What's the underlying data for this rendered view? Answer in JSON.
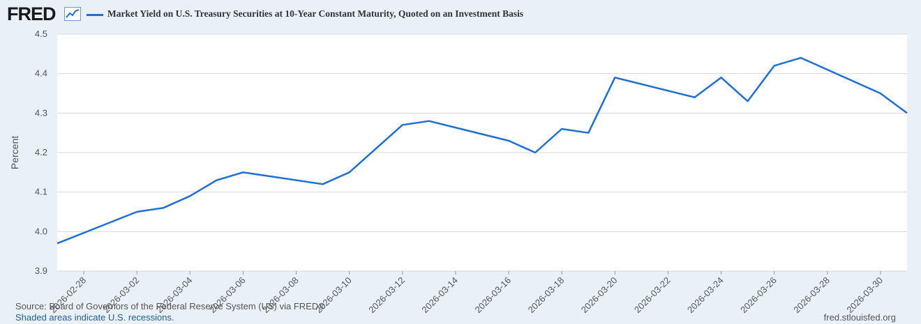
{
  "header": {
    "logo_text": "FRED",
    "logo_icon": "line-chart-icon",
    "series_color": "#1b6fd6"
  },
  "footer": {
    "source": "Source: Board of Governors of the Federal Reserve System (US) via FRED®",
    "recession_note": "Shaded areas indicate U.S. recessions.",
    "url": "fred.stlouisfed.org"
  },
  "chart_data": {
    "type": "line",
    "title": "Market Yield on U.S. Treasury Securities at 10-Year Constant Maturity, Quoted on an Investment Basis",
    "xlabel": "",
    "ylabel": "Percent",
    "ylim": [
      3.9,
      4.5
    ],
    "yticks": [
      "3.9",
      "4.0",
      "4.1",
      "4.2",
      "4.3",
      "4.4",
      "4.5"
    ],
    "xlim": [
      "2026-02-27",
      "2026-03-31"
    ],
    "xticks": [
      "2026-02-28",
      "2026-03-02",
      "2026-03-04",
      "2026-03-06",
      "2026-03-08",
      "2026-03-10",
      "2026-03-12",
      "2026-03-14",
      "2026-03-16",
      "2026-03-18",
      "2026-03-20",
      "2026-03-22",
      "2026-03-24",
      "2026-03-26",
      "2026-03-28",
      "2026-03-30"
    ],
    "grid": true,
    "series": [
      {
        "color": "#1b6fd6",
        "x": [
          "2026-02-27",
          "2026-03-02",
          "2026-03-03",
          "2026-03-04",
          "2026-03-05",
          "2026-03-06",
          "2026-03-09",
          "2026-03-10",
          "2026-03-12",
          "2026-03-13",
          "2026-03-16",
          "2026-03-17",
          "2026-03-18",
          "2026-03-19",
          "2026-03-20",
          "2026-03-23",
          "2026-03-24",
          "2026-03-25",
          "2026-03-26",
          "2026-03-27",
          "2026-03-30",
          "2026-03-31"
        ],
        "y": [
          3.97,
          4.05,
          4.06,
          4.09,
          4.13,
          4.15,
          4.12,
          4.15,
          4.27,
          4.28,
          4.23,
          4.2,
          4.26,
          4.25,
          4.39,
          4.34,
          4.39,
          4.33,
          4.42,
          4.44,
          4.35,
          4.3
        ]
      }
    ]
  }
}
